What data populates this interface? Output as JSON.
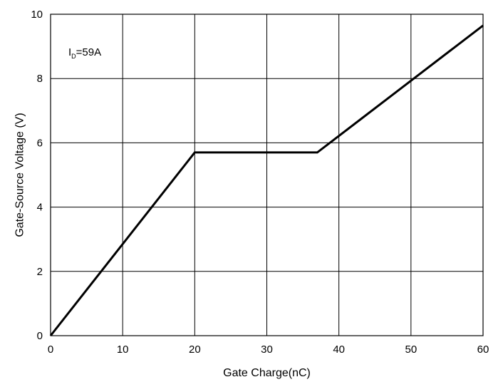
{
  "chart_data": {
    "type": "line",
    "title": "",
    "xlabel": "Gate Charge(nC)",
    "ylabel": "Gate-Source Voltage (V)",
    "xlim": [
      0,
      60
    ],
    "ylim": [
      0,
      10
    ],
    "x_ticks": [
      "0",
      "10",
      "20",
      "30",
      "40",
      "50",
      "60"
    ],
    "y_ticks": [
      "0",
      "2",
      "4",
      "6",
      "8",
      "10"
    ],
    "grid": true,
    "series": [
      {
        "color": "#000000",
        "points": [
          [
            0,
            0
          ],
          [
            20,
            5.7
          ],
          [
            37,
            5.7
          ],
          [
            60,
            9.65
          ]
        ]
      }
    ],
    "annotation": {
      "base": "I",
      "subscript": "D",
      "rest": "=59A"
    }
  }
}
